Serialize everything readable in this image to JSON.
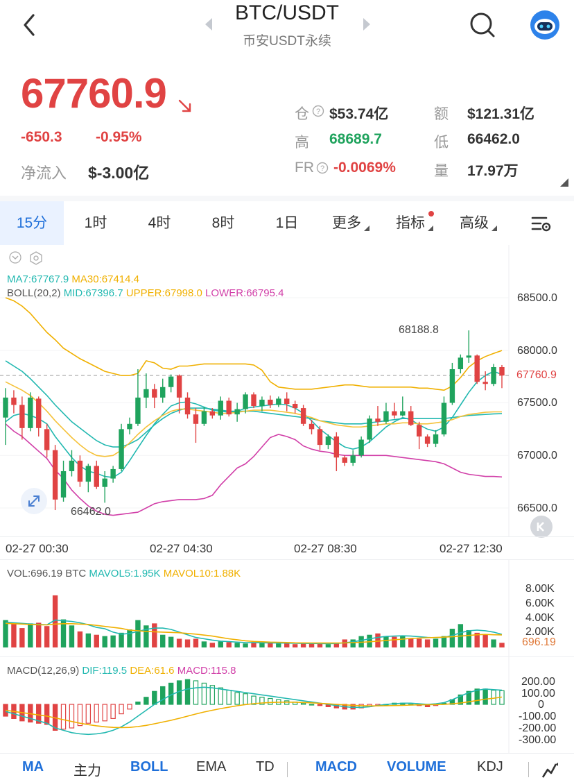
{
  "header": {
    "title": "BTC/USDT",
    "subtitle": "币安USDT永续"
  },
  "ticker": {
    "price": "67760.9",
    "change": "-650.3",
    "change_pct": "-0.95%",
    "netflow_label": "净流入",
    "netflow_value": "$-3.00亿",
    "stats": {
      "oi_label": "仓",
      "oi_value": "$53.74亿",
      "amount_label": "额",
      "amount_value": "$121.31亿",
      "high_label": "高",
      "high_value": "68689.7",
      "low_label": "低",
      "low_value": "66462.0",
      "fr_label": "FR",
      "fr_value": "-0.0069%",
      "vol_label": "量",
      "vol_value": "17.97万"
    }
  },
  "timeframes": {
    "items": [
      "15分",
      "1时",
      "4时",
      "8时",
      "1日"
    ],
    "more": "更多",
    "indicators": "指标",
    "advanced": "高级"
  },
  "main_chart": {
    "ma_legend": {
      "ma7": "MA7:67767.9",
      "ma30": "MA30:67414.4"
    },
    "boll_legend": {
      "params": "BOLL(20,2)",
      "mid": "MID:67396.7",
      "upper": "UPPER:67998.0",
      "lower": "LOWER:66795.4"
    },
    "y_ticks": [
      "68500.0",
      "68000.0",
      "67500.0",
      "67000.0",
      "66500.0"
    ],
    "last_price_tag": "67760.9",
    "high_mark": "68188.8",
    "low_mark": "66462.0",
    "x_ticks": [
      "02-27 00:30",
      "02-27 04:30",
      "02-27 08:30",
      "02-27 12:30"
    ]
  },
  "volume_chart": {
    "legend": {
      "vol": "VOL:696.19 BTC",
      "mavol5": "MAVOL5:1.95K",
      "mavol10": "MAVOL10:1.88K"
    },
    "y_ticks": [
      "8.00K",
      "6.00K",
      "4.00K",
      "2.00K"
    ],
    "last_tag": "696.19"
  },
  "macd_chart": {
    "legend": {
      "params": "MACD(12,26,9)",
      "dif": "DIF:119.5",
      "dea": "DEA:61.6",
      "macd": "MACD:115.8"
    },
    "y_ticks": [
      "200.00",
      "100.00",
      "0",
      "-100.00",
      "-200.00",
      "-300.00"
    ]
  },
  "indicator_bar": {
    "items": [
      {
        "label": "MA",
        "on": true
      },
      {
        "label": "主力",
        "on": false
      },
      {
        "label": "BOLL",
        "on": true
      },
      {
        "label": "EMA",
        "on": false
      },
      {
        "label": "TD",
        "on": false
      },
      {
        "label": "MACD",
        "on": true
      },
      {
        "label": "VOLUME",
        "on": true
      },
      {
        "label": "KDJ",
        "on": false
      }
    ]
  },
  "colors": {
    "up": "#1fa35d",
    "down": "#e04343",
    "ma7": "#21b8b0",
    "ma30": "#f0b000",
    "boll_lower": "#d13fa8",
    "accent": "#1e6fd9"
  },
  "icons": {
    "back": "back-arrow-icon",
    "prev": "prev-symbol-icon",
    "next": "next-symbol-icon",
    "search": "search-icon",
    "avatar": "robot-avatar-icon",
    "settings": "chart-settings-icon",
    "expand": "expand-icon",
    "scroll_latest": "scroll-to-latest-icon",
    "draw": "draw-tool-icon"
  },
  "chart_data": {
    "type": "candlestick",
    "interval": "15m",
    "candles": [
      {
        "o": 67360,
        "c": 67550,
        "h": 67640,
        "l": 67100
      },
      {
        "o": 67550,
        "c": 67480,
        "h": 67620,
        "l": 67400
      },
      {
        "o": 67480,
        "c": 67260,
        "h": 67560,
        "l": 67150
      },
      {
        "o": 67260,
        "c": 67550,
        "h": 67600,
        "l": 67230
      },
      {
        "o": 67540,
        "c": 67260,
        "h": 67560,
        "l": 67180
      },
      {
        "o": 67250,
        "c": 67050,
        "h": 67300,
        "l": 66980
      },
      {
        "o": 67050,
        "c": 66580,
        "h": 67100,
        "l": 66480
      },
      {
        "o": 66600,
        "c": 66850,
        "h": 66950,
        "l": 66560
      },
      {
        "o": 66850,
        "c": 66950,
        "h": 67050,
        "l": 66800
      },
      {
        "o": 66950,
        "c": 66750,
        "h": 67000,
        "l": 66700
      },
      {
        "o": 66750,
        "c": 66900,
        "h": 66920,
        "l": 66650
      },
      {
        "o": 66900,
        "c": 66700,
        "h": 66950,
        "l": 66680
      },
      {
        "o": 66700,
        "c": 66780,
        "h": 66850,
        "l": 66550
      },
      {
        "o": 66780,
        "c": 66870,
        "h": 66900,
        "l": 66740
      },
      {
        "o": 66870,
        "c": 67250,
        "h": 67300,
        "l": 66850
      },
      {
        "o": 67250,
        "c": 67300,
        "h": 67360,
        "l": 67200
      },
      {
        "o": 67300,
        "c": 67550,
        "h": 67820,
        "l": 67280
      },
      {
        "o": 67550,
        "c": 67630,
        "h": 67780,
        "l": 67450
      },
      {
        "o": 67630,
        "c": 67550,
        "h": 67680,
        "l": 67450
      },
      {
        "o": 67550,
        "c": 67650,
        "h": 67730,
        "l": 67500
      },
      {
        "o": 67650,
        "c": 67750,
        "h": 67770,
        "l": 67600
      },
      {
        "o": 67760,
        "c": 67550,
        "h": 67770,
        "l": 67400
      },
      {
        "o": 67550,
        "c": 67390,
        "h": 67600,
        "l": 67350
      },
      {
        "o": 67390,
        "c": 67300,
        "h": 67450,
        "l": 67120
      },
      {
        "o": 67300,
        "c": 67420,
        "h": 67460,
        "l": 67280
      },
      {
        "o": 67420,
        "c": 67380,
        "h": 67450,
        "l": 67350
      },
      {
        "o": 67380,
        "c": 67520,
        "h": 67560,
        "l": 67340
      },
      {
        "o": 67520,
        "c": 67390,
        "h": 67550,
        "l": 67370
      },
      {
        "o": 67390,
        "c": 67440,
        "h": 67500,
        "l": 67320
      },
      {
        "o": 67440,
        "c": 67580,
        "h": 67600,
        "l": 67400
      },
      {
        "o": 67580,
        "c": 67470,
        "h": 67600,
        "l": 67450
      },
      {
        "o": 67470,
        "c": 67530,
        "h": 67560,
        "l": 67420
      },
      {
        "o": 67530,
        "c": 67480,
        "h": 67570,
        "l": 67450
      },
      {
        "o": 67480,
        "c": 67540,
        "h": 67560,
        "l": 67460
      },
      {
        "o": 67540,
        "c": 67490,
        "h": 67600,
        "l": 67420
      },
      {
        "o": 67490,
        "c": 67450,
        "h": 67520,
        "l": 67400
      },
      {
        "o": 67450,
        "c": 67300,
        "h": 67480,
        "l": 67280
      },
      {
        "o": 67300,
        "c": 67250,
        "h": 67340,
        "l": 67200
      },
      {
        "o": 67250,
        "c": 67100,
        "h": 67280,
        "l": 67050
      },
      {
        "o": 67100,
        "c": 67180,
        "h": 67200,
        "l": 67060
      },
      {
        "o": 67180,
        "c": 66980,
        "h": 67220,
        "l": 66850
      },
      {
        "o": 66980,
        "c": 66930,
        "h": 67000,
        "l": 66900
      },
      {
        "o": 66930,
        "c": 67000,
        "h": 67050,
        "l": 66900
      },
      {
        "o": 67000,
        "c": 67150,
        "h": 67180,
        "l": 66980
      },
      {
        "o": 67150,
        "c": 67350,
        "h": 67380,
        "l": 67120
      },
      {
        "o": 67350,
        "c": 67320,
        "h": 67470,
        "l": 67280
      },
      {
        "o": 67320,
        "c": 67420,
        "h": 67500,
        "l": 67300
      },
      {
        "o": 67420,
        "c": 67380,
        "h": 67500,
        "l": 67350
      },
      {
        "o": 67380,
        "c": 67420,
        "h": 67560,
        "l": 67370
      },
      {
        "o": 67420,
        "c": 67290,
        "h": 67470,
        "l": 67280
      },
      {
        "o": 67290,
        "c": 67180,
        "h": 67320,
        "l": 67060
      },
      {
        "o": 67180,
        "c": 67110,
        "h": 67200,
        "l": 67080
      },
      {
        "o": 67110,
        "c": 67200,
        "h": 67240,
        "l": 67080
      },
      {
        "o": 67200,
        "c": 67500,
        "h": 67560,
        "l": 67180
      },
      {
        "o": 67500,
        "c": 67820,
        "h": 67880,
        "l": 67480
      },
      {
        "o": 67820,
        "c": 67930,
        "h": 67960,
        "l": 67780
      },
      {
        "o": 67930,
        "c": 67950,
        "h": 68189,
        "l": 67880
      },
      {
        "o": 67950,
        "c": 67700,
        "h": 67960,
        "l": 67680
      },
      {
        "o": 67700,
        "c": 67680,
        "h": 67800,
        "l": 67620
      },
      {
        "o": 67680,
        "c": 67840,
        "h": 67870,
        "l": 67660
      },
      {
        "o": 67840,
        "c": 67760,
        "h": 67860,
        "l": 67640
      }
    ],
    "ma7": [
      67320,
      67380,
      67400,
      67380,
      67350,
      67300,
      67180,
      67080,
      66980,
      66900,
      66850,
      66830,
      66800,
      66790,
      66840,
      66950,
      67070,
      67190,
      67300,
      67390,
      67470,
      67500,
      67510,
      67490,
      67460,
      67430,
      67420,
      67410,
      67420,
      67450,
      67460,
      67470,
      67480,
      67490,
      67480,
      67450,
      67400,
      67330,
      67250,
      67190,
      67130,
      67080,
      67060,
      67080,
      67130,
      67200,
      67270,
      67320,
      67360,
      67340,
      67290,
      67250,
      67230,
      67270,
      67360,
      67480,
      67600,
      67700,
      67760,
      67800,
      67770
    ],
    "ma30": [
      67700,
      67660,
      67620,
      67570,
      67500,
      67420,
      67330,
      67250,
      67170,
      67100,
      67040,
      67000,
      66990,
      67000,
      67050,
      67120,
      67200,
      67270,
      67330,
      67380,
      67420,
      67440,
      67440,
      67430,
      67420,
      67410,
      67400,
      67400,
      67410,
      67420,
      67430,
      67430,
      67430,
      67420,
      67410,
      67400,
      67380,
      67360,
      67330,
      67310,
      67290,
      67280,
      67270,
      67270,
      67280,
      67290,
      67300,
      67300,
      67310,
      67310,
      67300,
      67300,
      67310,
      67320,
      67340,
      67370,
      67390,
      67400,
      67410,
      67414,
      67414
    ],
    "boll_upper": [
      68500,
      68470,
      68420,
      68350,
      68260,
      68170,
      68100,
      68020,
      67970,
      67920,
      67880,
      67840,
      67800,
      67780,
      67760,
      67760,
      67780,
      67900,
      67880,
      67830,
      67820,
      67850,
      67850,
      67860,
      67870,
      67870,
      67870,
      67870,
      67870,
      67870,
      67860,
      67810,
      67700,
      67650,
      67640,
      67630,
      67630,
      67630,
      67640,
      67650,
      67660,
      67670,
      67670,
      67660,
      67650,
      67650,
      67650,
      67650,
      67650,
      67650,
      67640,
      67640,
      67630,
      67620,
      67660,
      67740,
      67840,
      67900,
      67940,
      67970,
      67998
    ],
    "boll_mid": [
      67900,
      67850,
      67800,
      67730,
      67650,
      67570,
      67480,
      67400,
      67320,
      67260,
      67200,
      67140,
      67100,
      67080,
      67080,
      67110,
      67150,
      67220,
      67290,
      67350,
      67400,
      67430,
      67450,
      67450,
      67450,
      67440,
      67430,
      67420,
      67420,
      67420,
      67420,
      67410,
      67400,
      67390,
      67380,
      67370,
      67360,
      67350,
      67330,
      67320,
      67310,
      67300,
      67300,
      67300,
      67310,
      67320,
      67330,
      67340,
      67350,
      67350,
      67350,
      67350,
      67350,
      67350,
      67360,
      67370,
      67380,
      67385,
      67390,
      67395,
      67397
    ],
    "boll_lower": [
      67300,
      67230,
      67180,
      67110,
      67040,
      66970,
      66860,
      66780,
      66670,
      66590,
      66520,
      66470,
      66440,
      66430,
      66440,
      66450,
      66460,
      66500,
      66540,
      66560,
      66570,
      66580,
      66580,
      66580,
      66590,
      66620,
      66720,
      66800,
      66880,
      66920,
      66990,
      67080,
      67170,
      67200,
      67180,
      67150,
      67090,
      67060,
      67040,
      67030,
      67010,
      67000,
      67000,
      67000,
      67000,
      67000,
      67000,
      66990,
      66980,
      66970,
      66960,
      66950,
      66940,
      66920,
      66880,
      66840,
      66820,
      66810,
      66800,
      66800,
      66795
    ],
    "volume": [
      4100,
      3500,
      2900,
      3600,
      3700,
      3200,
      7800,
      4200,
      3300,
      2400,
      2100,
      1900,
      1700,
      1800,
      2200,
      2700,
      4100,
      3300,
      3600,
      1900,
      1600,
      1300,
      1200,
      1300,
      900,
      700,
      900,
      800,
      700,
      600,
      800,
      700,
      700,
      600,
      600,
      500,
      700,
      600,
      600,
      500,
      700,
      1200,
      1200,
      1700,
      1900,
      2100,
      1700,
      1600,
      1700,
      1400,
      1300,
      1200,
      1300,
      1700,
      2800,
      3500,
      2600,
      2200,
      2000,
      1200,
      696
    ],
    "mavol5": [
      3800,
      3700,
      3600,
      3500,
      3450,
      3400,
      4100,
      4000,
      3900,
      3700,
      3400,
      3000,
      2800,
      2300,
      2000,
      2100,
      2400,
      2700,
      2900,
      2900,
      2700,
      2300,
      1900,
      1500,
      1300,
      1100,
      950,
      870,
      800,
      740,
      720,
      700,
      690,
      670,
      650,
      620,
      610,
      600,
      590,
      570,
      600,
      700,
      850,
      1050,
      1300,
      1500,
      1650,
      1700,
      1750,
      1700,
      1600,
      1500,
      1450,
      1500,
      1800,
      2200,
      2500,
      2600,
      2500,
      2300,
      1950
    ],
    "mavol10": [
      3600,
      3550,
      3500,
      3450,
      3400,
      3380,
      3500,
      3550,
      3550,
      3500,
      3450,
      3300,
      3150,
      3000,
      2850,
      2600,
      2500,
      2400,
      2350,
      2300,
      2250,
      2200,
      2100,
      2000,
      1850,
      1700,
      1500,
      1300,
      1150,
      1000,
      900,
      850,
      800,
      780,
      750,
      700,
      690,
      680,
      670,
      660,
      660,
      680,
      720,
      780,
      850,
      950,
      1050,
      1150,
      1250,
      1350,
      1400,
      1450,
      1500,
      1550,
      1600,
      1700,
      1800,
      1900,
      1950,
      1900,
      1880
    ],
    "macd_hist": [
      -100,
      -120,
      -140,
      -150,
      -160,
      -170,
      -220,
      -210,
      -200,
      -180,
      -160,
      -150,
      -140,
      -120,
      -80,
      -40,
      20,
      60,
      110,
      150,
      180,
      200,
      210,
      200,
      180,
      160,
      140,
      120,
      100,
      90,
      70,
      60,
      50,
      40,
      30,
      20,
      10,
      0,
      -10,
      -20,
      -30,
      -40,
      -40,
      -30,
      -20,
      -10,
      0,
      10,
      10,
      0,
      -10,
      -20,
      -10,
      10,
      40,
      80,
      110,
      130,
      130,
      120,
      116
    ],
    "macd_dif": [
      -60,
      -80,
      -100,
      -120,
      -140,
      -160,
      -200,
      -220,
      -240,
      -250,
      -255,
      -250,
      -240,
      -220,
      -190,
      -150,
      -100,
      -50,
      0,
      40,
      80,
      110,
      130,
      140,
      145,
      140,
      130,
      120,
      110,
      100,
      90,
      80,
      70,
      60,
      50,
      40,
      30,
      20,
      10,
      0,
      -10,
      -20,
      -25,
      -25,
      -20,
      -10,
      0,
      5,
      10,
      10,
      5,
      0,
      5,
      15,
      40,
      70,
      100,
      120,
      130,
      125,
      120
    ],
    "macd_dea": [
      -50,
      -60,
      -70,
      -80,
      -90,
      -100,
      -115,
      -130,
      -145,
      -160,
      -172,
      -182,
      -190,
      -195,
      -197,
      -195,
      -188,
      -178,
      -165,
      -150,
      -135,
      -118,
      -100,
      -82,
      -65,
      -50,
      -36,
      -24,
      -12,
      -2,
      6,
      12,
      16,
      18,
      19,
      18,
      16,
      13,
      9,
      5,
      0,
      -4,
      -8,
      -11,
      -13,
      -13,
      -12,
      -10,
      -8,
      -6,
      -4,
      -3,
      -2,
      0,
      5,
      12,
      22,
      33,
      44,
      52,
      62
    ]
  }
}
